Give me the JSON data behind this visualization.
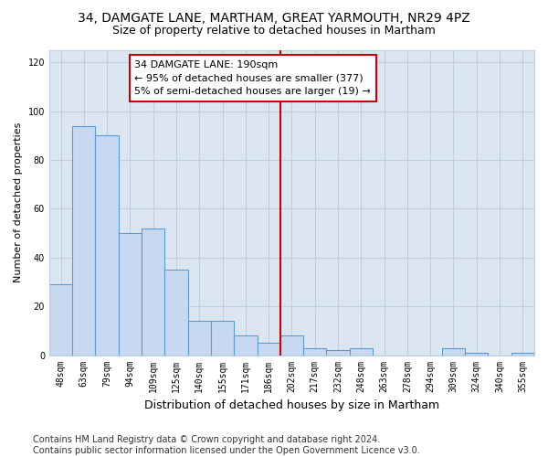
{
  "title": "34, DAMGATE LANE, MARTHAM, GREAT YARMOUTH, NR29 4PZ",
  "subtitle": "Size of property relative to detached houses in Martham",
  "xlabel": "Distribution of detached houses by size in Martham",
  "ylabel": "Number of detached properties",
  "categories": [
    "48sqm",
    "63sqm",
    "79sqm",
    "94sqm",
    "109sqm",
    "125sqm",
    "140sqm",
    "155sqm",
    "171sqm",
    "186sqm",
    "202sqm",
    "217sqm",
    "232sqm",
    "248sqm",
    "263sqm",
    "278sqm",
    "294sqm",
    "309sqm",
    "324sqm",
    "340sqm",
    "355sqm"
  ],
  "values": [
    29,
    94,
    90,
    50,
    52,
    35,
    14,
    14,
    8,
    5,
    8,
    3,
    2,
    3,
    0,
    0,
    0,
    3,
    1,
    0,
    1
  ],
  "bar_color": "#c6d9f0",
  "bar_edge_color": "#5b9bd5",
  "vline_x_index": 9,
  "vline_color": "#cc0000",
  "annotation_line1": "34 DAMGATE LANE: 190sqm",
  "annotation_line2": "← 95% of detached houses are smaller (377)",
  "annotation_line3": "5% of semi-detached houses are larger (19) →",
  "annotation_box_color": "#ffffff",
  "annotation_box_edge": "#cc0000",
  "grid_color": "#c0cfe0",
  "background_color": "#ffffff",
  "plot_bg_color": "#dce6f1",
  "ylim": [
    0,
    125
  ],
  "yticks": [
    0,
    20,
    40,
    60,
    80,
    100,
    120
  ],
  "footer_line1": "Contains HM Land Registry data © Crown copyright and database right 2024.",
  "footer_line2": "Contains public sector information licensed under the Open Government Licence v3.0.",
  "title_fontsize": 10,
  "subtitle_fontsize": 9,
  "xlabel_fontsize": 9,
  "ylabel_fontsize": 8,
  "tick_fontsize": 7,
  "footer_fontsize": 7,
  "annotation_fontsize": 8
}
